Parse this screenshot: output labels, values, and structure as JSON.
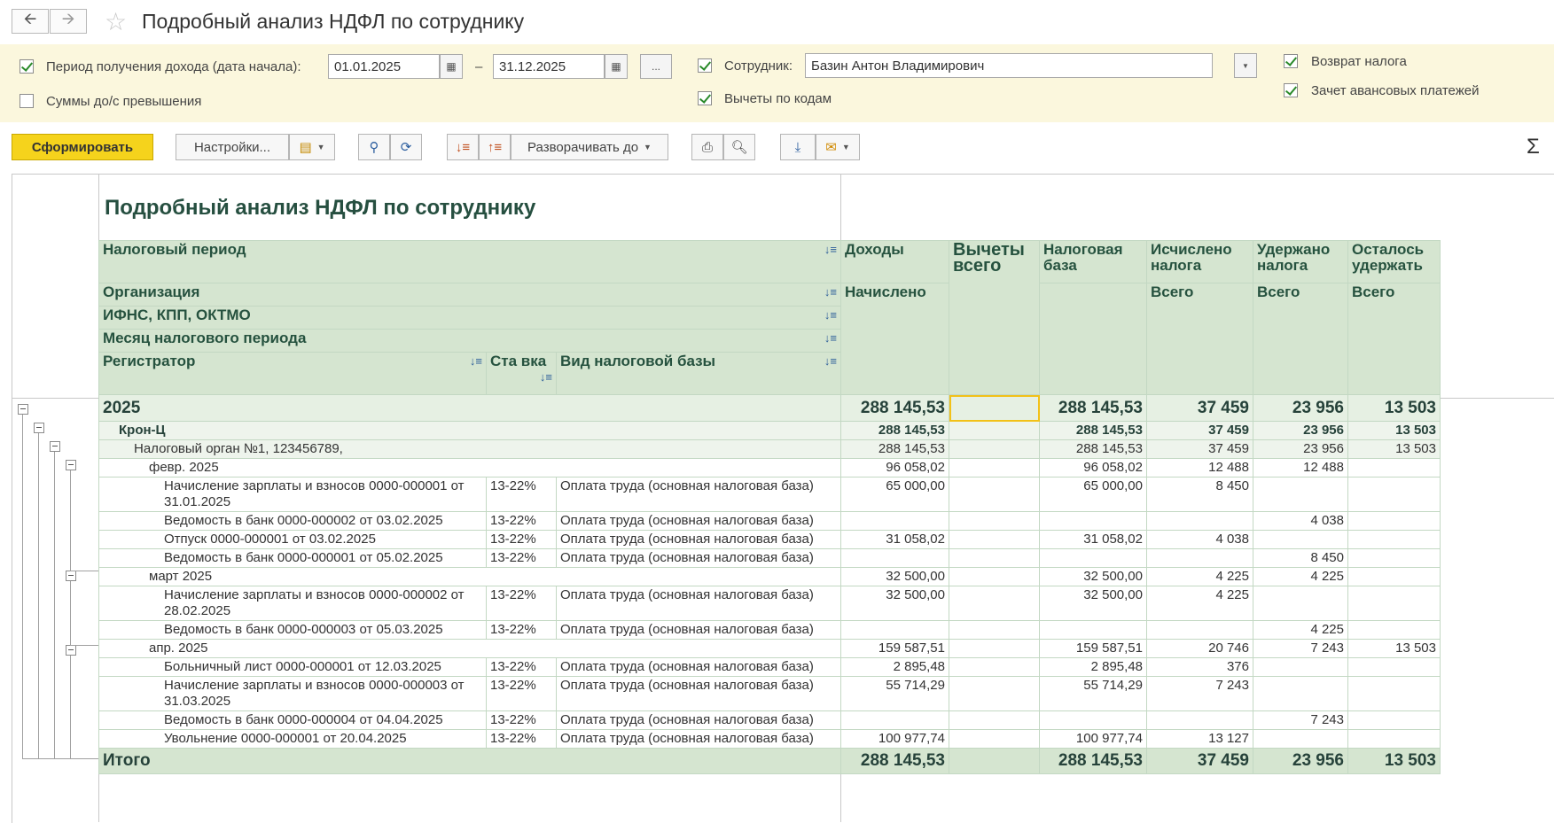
{
  "window": {
    "title": "Подробный анализ НДФЛ по сотруднику",
    "back_icon": "arrow-left-icon",
    "forward_icon": "arrow-right-icon",
    "star_icon": "star-icon"
  },
  "filters": {
    "period_label": "Период получения дохода (дата начала):",
    "date_from": "01.01.2025",
    "dash": "–",
    "date_to": "31.12.2025",
    "ellipsis": "...",
    "amounts_label": "Суммы до/с превышения",
    "employee_label": "Сотрудник:",
    "employee_value": "Базин Антон Владимирович",
    "deductions_label": "Вычеты по кодам",
    "refund_label": "Возврат налога",
    "advance_label": "Зачет авансовых платежей",
    "checks": {
      "period": true,
      "amounts": false,
      "employee": true,
      "deductions": true,
      "refund": true,
      "advance": true
    }
  },
  "toolbar": {
    "generate": "Сформировать",
    "settings": "Настройки...",
    "expand_to": "Разворачивать до",
    "sum_icon": "Σ"
  },
  "report": {
    "title": "Подробный анализ НДФЛ по сотруднику",
    "headers": {
      "tax_period": "Налоговый период",
      "organization": "Организация",
      "ifns": "ИФНС, КПП, ОКТМО",
      "month": "Месяц налогового периода",
      "registrar": "Регистратор",
      "rate": "Ста вка",
      "base_type": "Вид налоговой базы",
      "income": "Доходы",
      "income_sub": "Начислено",
      "deductions": "Вычеты всего",
      "tax_base": "Налоговая база",
      "calculated": "Исчислено налога",
      "calculated_sub": "Всего",
      "withheld": "Удержано налога",
      "withheld_sub": "Всего",
      "remaining": "Осталось удержать",
      "remaining_sub": "Всего"
    },
    "year": {
      "label": "2025",
      "income": "288 145,53",
      "deductions": "",
      "base": "288 145,53",
      "calc": "37 459",
      "withheld": "23 956",
      "remaining": "13 503"
    },
    "org": {
      "label": "Крон-Ц",
      "income": "288 145,53",
      "base": "288 145,53",
      "calc": "37 459",
      "withheld": "23 956",
      "remaining": "13 503"
    },
    "ifns": {
      "label": "Налоговый орган №1, 123456789,",
      "income": "288 145,53",
      "base": "288 145,53",
      "calc": "37 459",
      "withheld": "23 956",
      "remaining": "13 503"
    },
    "months": [
      {
        "label": "февр. 2025",
        "income": "96 058,02",
        "base": "96 058,02",
        "calc": "12 488",
        "withheld": "12 488",
        "remaining": "",
        "rows": [
          {
            "doc": "Начисление зарплаты и взносов 0000-000001 от 31.01.2025",
            "rate": "13-22%",
            "type": "Оплата труда (основная налоговая база)",
            "income": "65 000,00",
            "base": "65 000,00",
            "calc": "8 450",
            "withheld": "",
            "remaining": ""
          },
          {
            "doc": "Ведомость в банк 0000-000002 от 03.02.2025",
            "rate": "13-22%",
            "type": "Оплата труда (основная налоговая база)",
            "income": "",
            "base": "",
            "calc": "",
            "withheld": "4 038",
            "remaining": ""
          },
          {
            "doc": "Отпуск 0000-000001 от 03.02.2025",
            "rate": "13-22%",
            "type": "Оплата труда (основная налоговая база)",
            "income": "31 058,02",
            "base": "31 058,02",
            "calc": "4 038",
            "withheld": "",
            "remaining": ""
          },
          {
            "doc": "Ведомость в банк 0000-000001 от 05.02.2025",
            "rate": "13-22%",
            "type": "Оплата труда (основная налоговая база)",
            "income": "",
            "base": "",
            "calc": "",
            "withheld": "8 450",
            "remaining": ""
          }
        ]
      },
      {
        "label": "март 2025",
        "income": "32 500,00",
        "base": "32 500,00",
        "calc": "4 225",
        "withheld": "4 225",
        "remaining": "",
        "rows": [
          {
            "doc": "Начисление зарплаты и взносов 0000-000002 от 28.02.2025",
            "rate": "13-22%",
            "type": "Оплата труда (основная налоговая база)",
            "income": "32 500,00",
            "base": "32 500,00",
            "calc": "4 225",
            "withheld": "",
            "remaining": ""
          },
          {
            "doc": "Ведомость в банк 0000-000003 от 05.03.2025",
            "rate": "13-22%",
            "type": "Оплата труда (основная налоговая база)",
            "income": "",
            "base": "",
            "calc": "",
            "withheld": "4 225",
            "remaining": ""
          }
        ]
      },
      {
        "label": "апр. 2025",
        "income": "159 587,51",
        "base": "159 587,51",
        "calc": "20 746",
        "withheld": "7 243",
        "remaining": "13 503",
        "rows": [
          {
            "doc": "Больничный лист 0000-000001 от 12.03.2025",
            "rate": "13-22%",
            "type": "Оплата труда (основная налоговая база)",
            "income": "2 895,48",
            "base": "2 895,48",
            "calc": "376",
            "withheld": "",
            "remaining": ""
          },
          {
            "doc": "Начисление зарплаты и взносов 0000-000003 от 31.03.2025",
            "rate": "13-22%",
            "type": "Оплата труда (основная налоговая база)",
            "income": "55 714,29",
            "base": "55 714,29",
            "calc": "7 243",
            "withheld": "",
            "remaining": ""
          },
          {
            "doc": "Ведомость в банк 0000-000004 от 04.04.2025",
            "rate": "13-22%",
            "type": "Оплата труда (основная налоговая база)",
            "income": "",
            "base": "",
            "calc": "",
            "withheld": "7 243",
            "remaining": ""
          },
          {
            "doc": "Увольнение 0000-000001 от 20.04.2025",
            "rate": "13-22%",
            "type": "Оплата труда (основная налоговая база)",
            "income": "100 977,74",
            "base": "100 977,74",
            "calc": "13 127",
            "withheld": "",
            "remaining": ""
          }
        ]
      }
    ],
    "total": {
      "label": "Итого",
      "income": "288 145,53",
      "base": "288 145,53",
      "calc": "37 459",
      "withheld": "23 956",
      "remaining": "13 503"
    }
  }
}
